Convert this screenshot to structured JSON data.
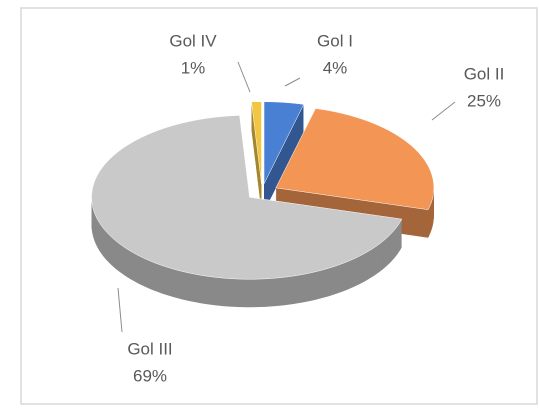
{
  "chart_data": {
    "type": "pie",
    "categories": [
      "Gol I",
      "Gol II",
      "Gol III",
      "Gol IV"
    ],
    "values": [
      4,
      25,
      69,
      1
    ],
    "value_labels": [
      "4%",
      "25%",
      "69%",
      "1%"
    ],
    "colors": [
      "#4a80d4",
      "#f29555",
      "#c9c9c9",
      "#f3c641"
    ],
    "three_d": true,
    "exploded": true
  }
}
